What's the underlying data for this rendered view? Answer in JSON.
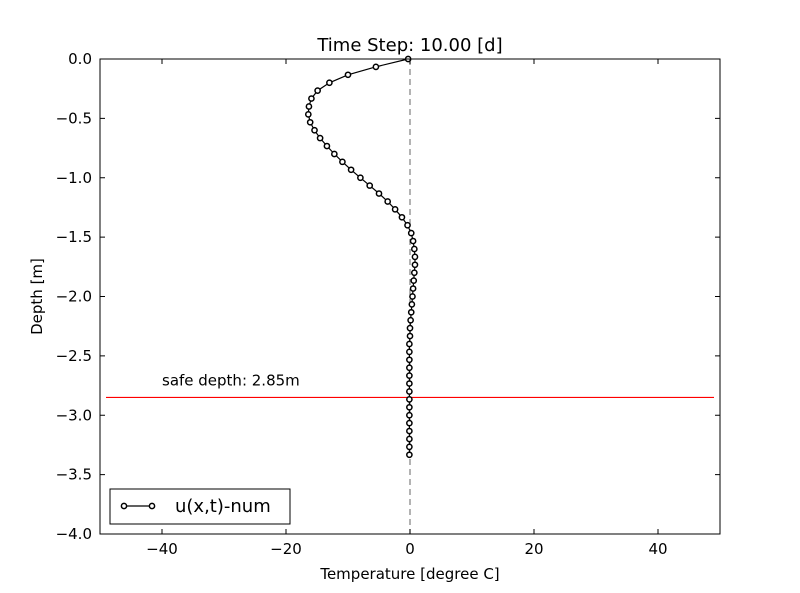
{
  "chart_data": {
    "type": "line",
    "title": "Time Step: 10.00 [d]",
    "xlabel": "Temperature [degree C]",
    "ylabel": "Depth [m]",
    "xlim": [
      -50,
      50
    ],
    "ylim": [
      -4.0,
      0.0
    ],
    "xticks": [
      -40,
      -20,
      0,
      20,
      40
    ],
    "xtick_labels": [
      "−40",
      "−20",
      "0",
      "20",
      "40"
    ],
    "yticks": [
      0.0,
      -0.5,
      -1.0,
      -1.5,
      -2.0,
      -2.5,
      -3.0,
      -3.5,
      -4.0
    ],
    "ytick_labels": [
      "0.0",
      "−0.5",
      "−1.0",
      "−1.5",
      "−2.0",
      "−2.5",
      "−3.0",
      "−3.5",
      "−4.0"
    ],
    "grid": false,
    "legend_position": "lower-left",
    "series": [
      {
        "name": "u(x,t)-num",
        "color": "#000000",
        "marker": "circle-open",
        "x": [
          -0.3,
          -5.5,
          -10.0,
          -13.0,
          -14.9,
          -15.9,
          -16.3,
          -16.4,
          -16.1,
          -15.4,
          -14.5,
          -13.4,
          -12.2,
          -10.9,
          -9.5,
          -8.0,
          -6.5,
          -5.0,
          -3.6,
          -2.4,
          -1.3,
          -0.4,
          0.2,
          0.5,
          0.7,
          0.8,
          0.8,
          0.7,
          0.6,
          0.5,
          0.4,
          0.3,
          0.2,
          0.1,
          0.0,
          0.0,
          -0.1,
          -0.1,
          -0.1,
          -0.1,
          -0.1,
          -0.1,
          -0.1,
          -0.1,
          -0.1,
          -0.1,
          -0.1,
          -0.1,
          -0.1,
          -0.1,
          -0.1
        ],
        "y": [
          0.0,
          -0.066,
          -0.133,
          -0.2,
          -0.266,
          -0.333,
          -0.4,
          -0.466,
          -0.533,
          -0.6,
          -0.666,
          -0.733,
          -0.8,
          -0.866,
          -0.933,
          -1.0,
          -1.066,
          -1.133,
          -1.2,
          -1.266,
          -1.333,
          -1.4,
          -1.466,
          -1.533,
          -1.6,
          -1.666,
          -1.733,
          -1.8,
          -1.866,
          -1.933,
          -2.0,
          -2.066,
          -2.133,
          -2.2,
          -2.266,
          -2.333,
          -2.4,
          -2.466,
          -2.533,
          -2.6,
          -2.666,
          -2.733,
          -2.8,
          -2.866,
          -2.933,
          -3.0,
          -3.066,
          -3.133,
          -3.2,
          -3.266,
          -3.333
        ]
      }
    ],
    "reference_lines": [
      {
        "orientation": "horizontal",
        "y": -2.85,
        "color": "#ff0000",
        "style": "solid"
      },
      {
        "orientation": "vertical",
        "x": 0,
        "color": "#808080",
        "style": "dashed"
      }
    ],
    "annotations": [
      {
        "text": "safe depth: 2.85m",
        "x": -40,
        "y": -2.75
      }
    ]
  }
}
